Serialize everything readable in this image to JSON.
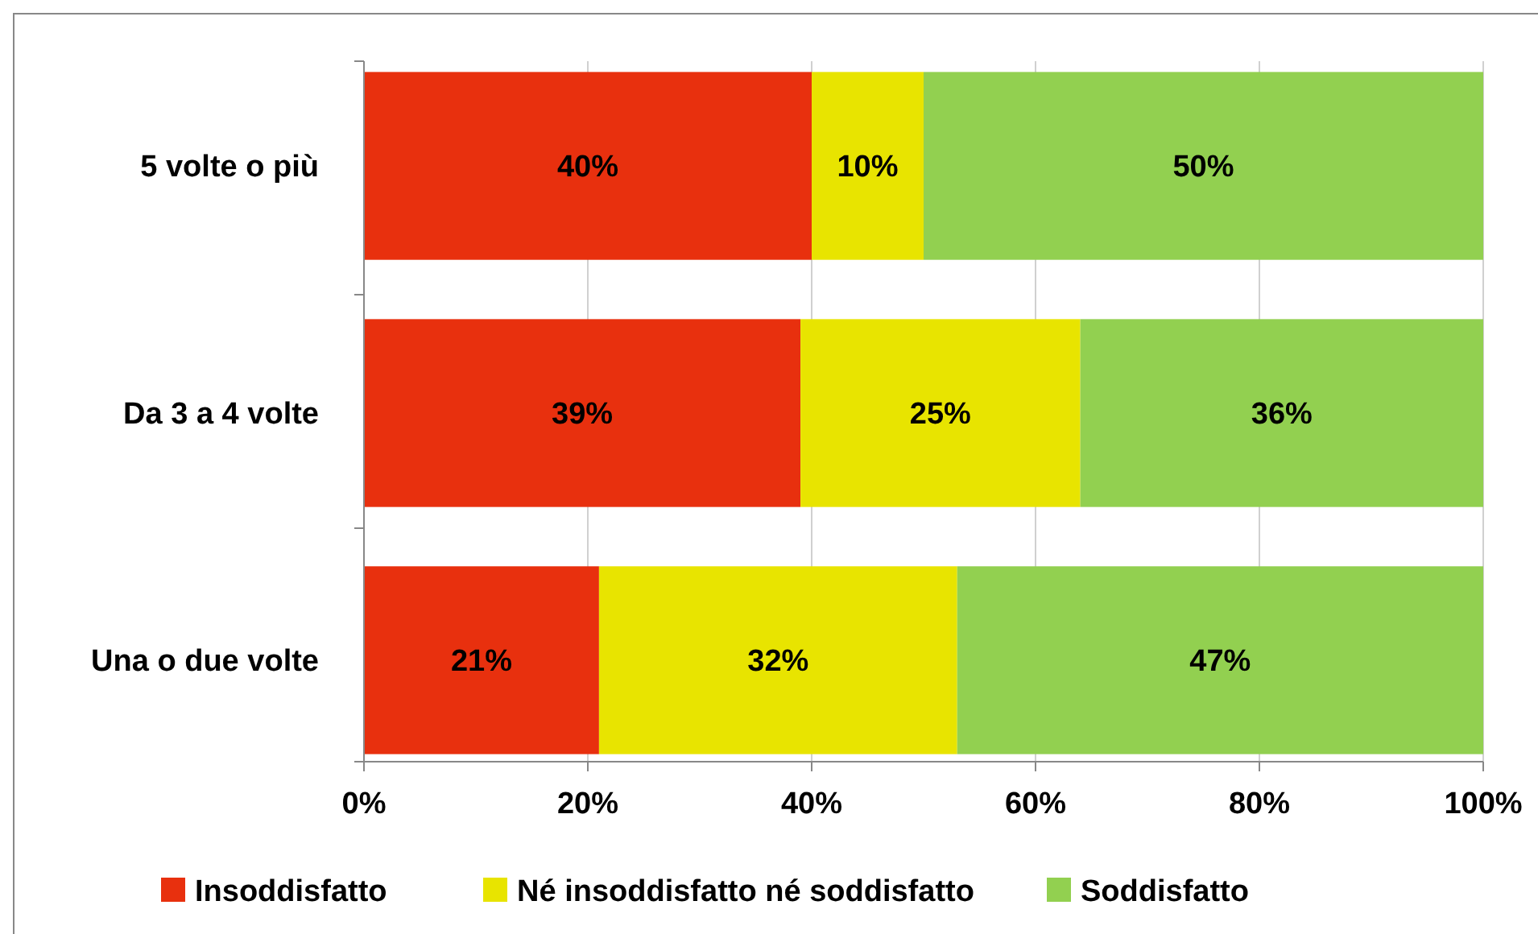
{
  "chart_data": {
    "type": "bar",
    "orientation": "horizontal",
    "stacked": true,
    "categories": [
      "5 volte o più",
      "Da 3 a 4 volte",
      "Una o due volte"
    ],
    "series": [
      {
        "name": "Insoddisfatto",
        "color": "#e8300e",
        "values": [
          40,
          39,
          21
        ],
        "value_labels": [
          "40%",
          "39%",
          "21%"
        ]
      },
      {
        "name": "Né insoddisfatto  né soddisfatto",
        "color": "#e8e400",
        "values": [
          10,
          25,
          32
        ],
        "value_labels": [
          "10%",
          "25%",
          "32%"
        ]
      },
      {
        "name": "Soddisfatto",
        "color": "#92d050",
        "values": [
          50,
          36,
          47
        ],
        "value_labels": [
          "50%",
          "36%",
          "47%"
        ]
      }
    ],
    "xlim": [
      0,
      100
    ],
    "xticks": [
      {
        "value": 0,
        "label": "0%"
      },
      {
        "value": 20,
        "label": "20%"
      },
      {
        "value": 40,
        "label": "40%"
      },
      {
        "value": 60,
        "label": "60%"
      },
      {
        "value": 80,
        "label": "80%"
      },
      {
        "value": 100,
        "label": "100%"
      }
    ],
    "grid": "x",
    "legend": "bottom"
  }
}
